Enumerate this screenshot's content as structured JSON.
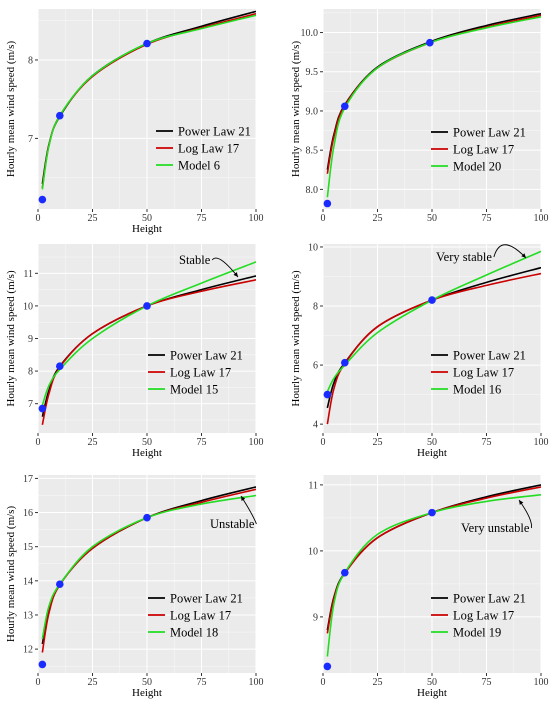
{
  "chart_data": [
    {
      "type": "line",
      "xlabel": "Height",
      "ylabel": "Hourly mean wind speed (m/s)",
      "xlim": [
        0,
        100
      ],
      "ylim": [
        6.1,
        8.65
      ],
      "xticks": [
        0,
        25,
        50,
        75,
        100
      ],
      "yticks": [
        7,
        8
      ],
      "grid": true,
      "legend_position": "right",
      "observed_points": {
        "x": [
          2,
          10,
          50
        ],
        "y": [
          6.22,
          7.29,
          8.21
        ]
      },
      "series": [
        {
          "name": "Power Law 21",
          "color": "#000000",
          "x": [
            2,
            5,
            10,
            25,
            50,
            75,
            100
          ],
          "y": [
            6.42,
            6.92,
            7.28,
            7.8,
            8.21,
            8.43,
            8.62
          ]
        },
        {
          "name": "Log Law 17",
          "color": "#cc0000",
          "x": [
            2,
            5,
            10,
            25,
            50,
            75,
            100
          ],
          "y": [
            6.37,
            6.91,
            7.29,
            7.79,
            8.2,
            8.41,
            8.59
          ]
        },
        {
          "name": "Model 6",
          "color": "#22dd22",
          "x": [
            2,
            5,
            10,
            25,
            50,
            75,
            100
          ],
          "y": [
            6.35,
            6.9,
            7.29,
            7.8,
            8.21,
            8.4,
            8.57
          ]
        }
      ],
      "annotation": ""
    },
    {
      "type": "line",
      "xlabel": "",
      "ylabel": "Hourly mean wind speed (m/s)",
      "xlim": [
        0,
        100
      ],
      "ylim": [
        7.75,
        10.3
      ],
      "xticks": [
        0,
        25,
        50,
        75,
        100
      ],
      "yticks": [
        8.0,
        8.5,
        9.0,
        9.5,
        10.0
      ],
      "ytick_format": 1,
      "grid": true,
      "legend_position": "bottom-right",
      "observed_points": {
        "x": [
          2,
          10,
          49
        ],
        "y": [
          7.82,
          9.06,
          9.87
        ]
      },
      "series": [
        {
          "name": "Power Law 21",
          "color": "#000000",
          "x": [
            2,
            5,
            10,
            25,
            50,
            75,
            100
          ],
          "y": [
            8.25,
            8.7,
            9.08,
            9.56,
            9.89,
            10.09,
            10.24
          ]
        },
        {
          "name": "Log Law 17",
          "color": "#cc0000",
          "x": [
            2,
            5,
            10,
            25,
            50,
            75,
            100
          ],
          "y": [
            8.2,
            8.67,
            9.07,
            9.55,
            9.88,
            10.07,
            10.22
          ]
        },
        {
          "name": "Model 20",
          "color": "#22dd22",
          "x": [
            2,
            5,
            10,
            25,
            50,
            75,
            100
          ],
          "y": [
            7.9,
            8.55,
            9.04,
            9.55,
            9.88,
            10.06,
            10.2
          ]
        }
      ],
      "annotation": ""
    },
    {
      "type": "line",
      "xlabel": "Height",
      "ylabel": "Hourly mean wind speed (m/s)",
      "xlim": [
        0,
        100
      ],
      "ylim": [
        6.1,
        11.9
      ],
      "xticks": [
        0,
        25,
        50,
        75,
        100
      ],
      "yticks": [
        7,
        8,
        9,
        10,
        11
      ],
      "grid": true,
      "legend_position": "bottom-right",
      "observed_points": {
        "x": [
          2,
          10,
          50
        ],
        "y": [
          6.85,
          8.15,
          10.0
        ]
      },
      "series": [
        {
          "name": "Power Law 21",
          "color": "#000000",
          "x": [
            2,
            5,
            10,
            25,
            50,
            75,
            100
          ],
          "y": [
            6.6,
            7.4,
            8.15,
            9.15,
            10.0,
            10.5,
            10.92
          ]
        },
        {
          "name": "Log Law 17",
          "color": "#cc0000",
          "x": [
            2,
            5,
            10,
            25,
            50,
            75,
            100
          ],
          "y": [
            6.35,
            7.3,
            8.12,
            9.15,
            10.0,
            10.45,
            10.8
          ]
        },
        {
          "name": "Model 15",
          "color": "#22dd22",
          "x": [
            2,
            5,
            10,
            25,
            50,
            75,
            100
          ],
          "y": [
            6.95,
            7.55,
            8.05,
            9.0,
            10.0,
            10.7,
            11.35
          ]
        }
      ],
      "annotation": "Stable"
    },
    {
      "type": "line",
      "xlabel": "Height",
      "ylabel": "Hourly mean wind speed (m/s)",
      "xlim": [
        0,
        100
      ],
      "ylim": [
        3.7,
        10.1
      ],
      "xticks": [
        0,
        25,
        50,
        75,
        100
      ],
      "yticks": [
        4,
        6,
        8,
        10
      ],
      "grid": true,
      "legend_position": "bottom-right",
      "observed_points": {
        "x": [
          2,
          10,
          50
        ],
        "y": [
          5.0,
          6.08,
          8.2
        ]
      },
      "series": [
        {
          "name": "Power Law 21",
          "color": "#000000",
          "x": [
            2,
            5,
            10,
            25,
            50,
            75,
            100
          ],
          "y": [
            4.55,
            5.4,
            6.08,
            7.3,
            8.2,
            8.8,
            9.3
          ]
        },
        {
          "name": "Log Law 17",
          "color": "#cc0000",
          "x": [
            2,
            5,
            10,
            25,
            50,
            75,
            100
          ],
          "y": [
            4.0,
            5.2,
            6.05,
            7.3,
            8.2,
            8.7,
            9.1
          ]
        },
        {
          "name": "Model 16",
          "color": "#22dd22",
          "x": [
            2,
            5,
            10,
            25,
            50,
            75,
            100
          ],
          "y": [
            5.1,
            5.55,
            6.0,
            7.1,
            8.2,
            9.05,
            9.85
          ]
        }
      ],
      "annotation": "Very stable"
    },
    {
      "type": "line",
      "xlabel": "Height",
      "ylabel": "Hourly mean wind speed (m/s)",
      "xlim": [
        0,
        100
      ],
      "ylim": [
        11.3,
        17.1
      ],
      "xticks": [
        0,
        25,
        50,
        75,
        100
      ],
      "yticks": [
        12,
        13,
        14,
        15,
        16,
        17
      ],
      "grid": true,
      "legend_position": "bottom-right",
      "observed_points": {
        "x": [
          2,
          10,
          50
        ],
        "y": [
          11.55,
          13.9,
          15.85
        ]
      },
      "series": [
        {
          "name": "Power Law 21",
          "color": "#000000",
          "x": [
            2,
            5,
            10,
            25,
            50,
            75,
            100
          ],
          "y": [
            12.15,
            13.15,
            13.9,
            14.95,
            15.85,
            16.35,
            16.75
          ]
        },
        {
          "name": "Log Law 17",
          "color": "#cc0000",
          "x": [
            2,
            5,
            10,
            25,
            50,
            75,
            100
          ],
          "y": [
            11.9,
            13.05,
            13.88,
            14.95,
            15.85,
            16.3,
            16.68
          ]
        },
        {
          "name": "Model 18",
          "color": "#22dd22",
          "x": [
            2,
            5,
            10,
            25,
            50,
            75,
            100
          ],
          "y": [
            12.3,
            13.25,
            13.9,
            15.0,
            15.85,
            16.25,
            16.5
          ]
        }
      ],
      "annotation": "Unstable"
    },
    {
      "type": "line",
      "xlabel": "Height",
      "ylabel": "",
      "xlim": [
        0,
        100
      ],
      "ylim": [
        8.15,
        11.15
      ],
      "xticks": [
        0,
        25,
        50,
        75,
        100
      ],
      "yticks": [
        9,
        10,
        11
      ],
      "grid": true,
      "legend_position": "bottom-right",
      "observed_points": {
        "x": [
          2,
          10,
          50
        ],
        "y": [
          8.25,
          9.67,
          10.58
        ]
      },
      "series": [
        {
          "name": "Power Law 21",
          "color": "#000000",
          "x": [
            2,
            5,
            10,
            25,
            50,
            75,
            100
          ],
          "y": [
            8.8,
            9.3,
            9.67,
            10.2,
            10.58,
            10.82,
            11.0
          ]
        },
        {
          "name": "Log Law 17",
          "color": "#cc0000",
          "x": [
            2,
            5,
            10,
            25,
            50,
            75,
            100
          ],
          "y": [
            8.75,
            9.28,
            9.66,
            10.2,
            10.58,
            10.8,
            10.97
          ]
        },
        {
          "name": "Model 19",
          "color": "#22dd22",
          "x": [
            2,
            5,
            10,
            25,
            50,
            75,
            100
          ],
          "y": [
            8.4,
            9.2,
            9.67,
            10.25,
            10.58,
            10.75,
            10.85
          ]
        }
      ],
      "annotation": "Very unstable"
    }
  ],
  "style": {
    "marker_color": "#1a2bff",
    "panel_bg": "#ebebeb",
    "grid_color": "#ffffff"
  }
}
